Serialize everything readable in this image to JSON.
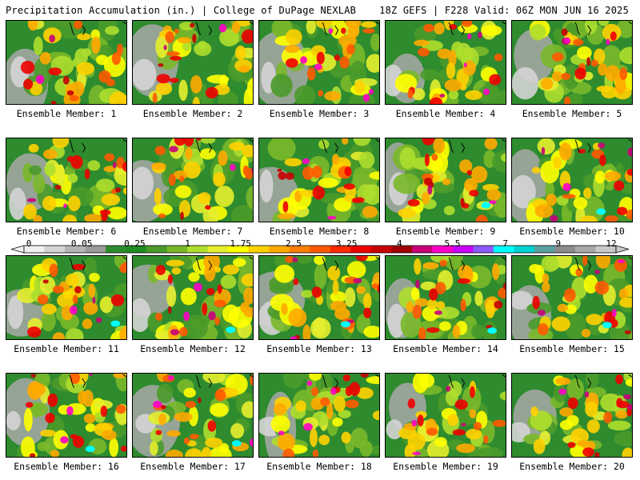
{
  "header": {
    "left": "Precipitation Accumulation (in.) | College of DuPage NEXLAB",
    "right": "18Z GEFS | F228 Valid: 06Z MON JUN 16 2025"
  },
  "panels": [
    {
      "label": "Ensemble Member: 1"
    },
    {
      "label": "Ensemble Member: 2"
    },
    {
      "label": "Ensemble Member: 3"
    },
    {
      "label": "Ensemble Member: 4"
    },
    {
      "label": "Ensemble Member: 5"
    },
    {
      "label": "Ensemble Member: 6"
    },
    {
      "label": "Ensemble Member: 7"
    },
    {
      "label": "Ensemble Member: 8"
    },
    {
      "label": "Ensemble Member: 9"
    },
    {
      "label": "Ensemble Member: 10"
    },
    {
      "label": "Ensemble Member: 11"
    },
    {
      "label": "Ensemble Member: 12"
    },
    {
      "label": "Ensemble Member: 13"
    },
    {
      "label": "Ensemble Member: 14"
    },
    {
      "label": "Ensemble Member: 15"
    },
    {
      "label": "Ensemble Member: 16"
    },
    {
      "label": "Ensemble Member: 17"
    },
    {
      "label": "Ensemble Member: 18"
    },
    {
      "label": "Ensemble Member: 19"
    },
    {
      "label": "Ensemble Member: 20"
    }
  ],
  "colorbar": {
    "labels": [
      "0",
      "0.05",
      "0.25",
      "1",
      "1.75",
      "2.5",
      "3.25",
      "4",
      "5.5",
      "7",
      "9",
      "12"
    ],
    "colors": [
      "#f0f0f0",
      "#d4d4d4",
      "#b4b4b4",
      "#9a9a9a",
      "#2e8b2e",
      "#228b22",
      "#4a9a2a",
      "#7ab82a",
      "#aede2e",
      "#e6ee2e",
      "#ffff00",
      "#ffd200",
      "#ffaa00",
      "#ff8000",
      "#ff5a00",
      "#ff2a00",
      "#ee0000",
      "#c80000",
      "#a00000",
      "#c8007a",
      "#ff00c8",
      "#c800ff",
      "#8a5aff",
      "#00ffff",
      "#00d2d2",
      "#5aa0a0",
      "#8c8c8c",
      "#a8a8a8",
      "#c8c8c8"
    ]
  }
}
